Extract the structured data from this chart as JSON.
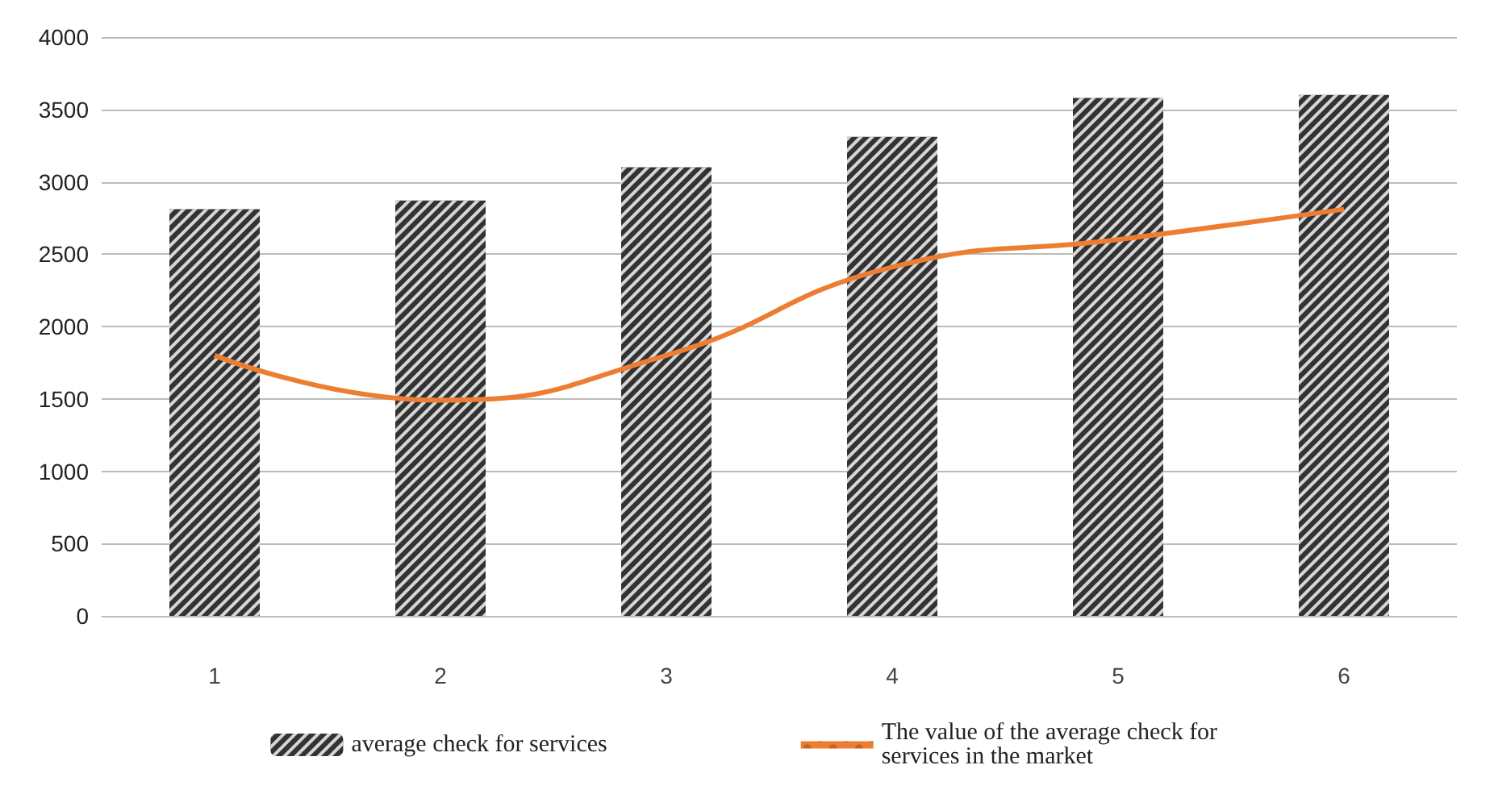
{
  "chart_data": {
    "type": "bar",
    "categories": [
      "1",
      "2",
      "3",
      "4",
      "5",
      "6"
    ],
    "series": [
      {
        "name": "average check for services",
        "color": "#333333",
        "values": [
          2810,
          2870,
          3100,
          3310,
          3580,
          3600
        ]
      },
      {
        "name": "The value of the average check for services in the market",
        "type": "line",
        "color": "#ed7d31",
        "values": [
          1800,
          1490,
          1800,
          2410,
          2600,
          2810
        ]
      }
    ],
    "ylim": [
      0,
      4000
    ],
    "yticks": [
      0,
      500,
      1000,
      1500,
      2000,
      2500,
      3000,
      3500,
      4000
    ],
    "grid": "y",
    "legend": "bottom",
    "marker": "none"
  }
}
